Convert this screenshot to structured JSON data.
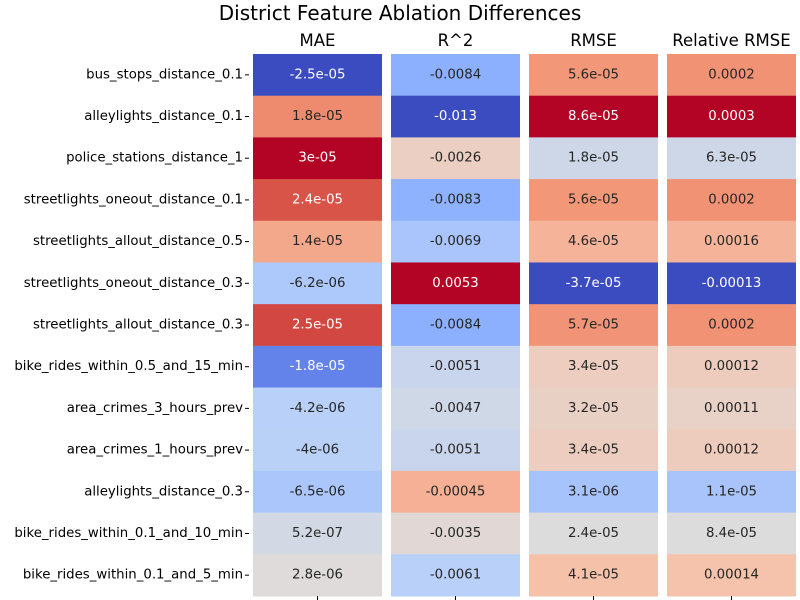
{
  "chart_data": {
    "type": "heatmap",
    "title": "District Feature Ablation Differences",
    "colormap": "coolwarm",
    "rows": [
      "bus_stops_distance_0.1",
      "alleylights_distance_0.1",
      "police_stations_distance_1",
      "streetlights_oneout_distance_0.1",
      "streetlights_allout_distance_0.5",
      "streetlights_oneout_distance_0.3",
      "streetlights_allout_distance_0.3",
      "bike_rides_within_0.5_and_15_min",
      "area_crimes_3_hours_prev",
      "area_crimes_1_hours_prev",
      "alleylights_distance_0.3",
      "bike_rides_within_0.1_and_10_min",
      "bike_rides_within_0.1_and_5_min"
    ],
    "panels": [
      {
        "name": "MAE",
        "values": [
          -2.5e-05,
          1.8e-05,
          3e-05,
          2.4e-05,
          1.4e-05,
          -6.2e-06,
          2.5e-05,
          -1.8e-05,
          -4.2e-06,
          -4e-06,
          -6.5e-06,
          5.2e-07,
          2.8e-06
        ],
        "labels": [
          "-2.5e-05",
          "1.8e-05",
          "3e-05",
          "2.4e-05",
          "1.4e-05",
          "-6.2e-06",
          "2.5e-05",
          "-1.8e-05",
          "-4.2e-06",
          "-4e-06",
          "-6.5e-06",
          "5.2e-07",
          "2.8e-06"
        ]
      },
      {
        "name": "R^2",
        "values": [
          -0.0084,
          -0.013,
          -0.0026,
          -0.0083,
          -0.0069,
          0.0053,
          -0.0084,
          -0.0051,
          -0.0047,
          -0.0051,
          -0.00045,
          -0.0035,
          -0.0061
        ],
        "labels": [
          "-0.0084",
          "-0.013",
          "-0.0026",
          "-0.0083",
          "-0.0069",
          "0.0053",
          "-0.0084",
          "-0.0051",
          "-0.0047",
          "-0.0051",
          "-0.00045",
          "-0.0035",
          "-0.0061"
        ]
      },
      {
        "name": "RMSE",
        "values": [
          5.6e-05,
          8.6e-05,
          1.8e-05,
          5.6e-05,
          4.6e-05,
          -3.7e-05,
          5.7e-05,
          3.4e-05,
          3.2e-05,
          3.4e-05,
          3.1e-06,
          2.4e-05,
          4.1e-05
        ],
        "labels": [
          "5.6e-05",
          "8.6e-05",
          "1.8e-05",
          "5.6e-05",
          "4.6e-05",
          "-3.7e-05",
          "5.7e-05",
          "3.4e-05",
          "3.2e-05",
          "3.4e-05",
          "3.1e-06",
          "2.4e-05",
          "4.1e-05"
        ]
      },
      {
        "name": "Relative RMSE",
        "values": [
          0.0002,
          0.0003,
          6.3e-05,
          0.0002,
          0.00016,
          -0.00013,
          0.0002,
          0.00012,
          0.00011,
          0.00012,
          1.1e-05,
          8.4e-05,
          0.00014
        ],
        "labels": [
          "0.0002",
          "0.0003",
          "6.3e-05",
          "0.0002",
          "0.00016",
          "-0.00013",
          "0.0002",
          "0.00012",
          "0.00011",
          "0.00012",
          "1.1e-05",
          "8.4e-05",
          "0.00014"
        ]
      }
    ]
  }
}
